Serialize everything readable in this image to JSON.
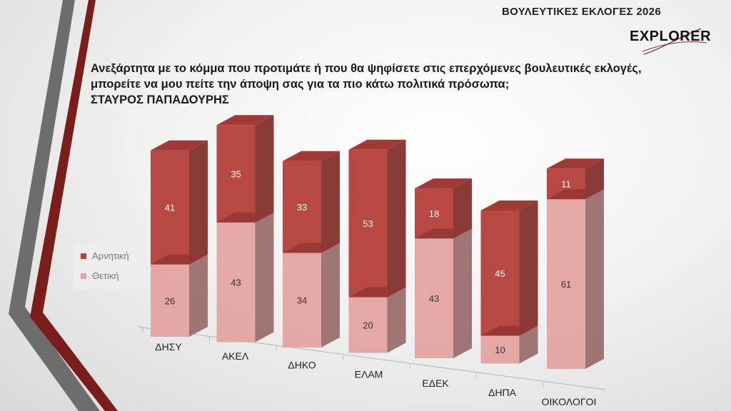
{
  "header": {
    "title": "ΒΟΥΛΕΥΤΙΚΕΣ ΕΚΛΟΓΕΣ 2026",
    "logo_text": "EXPLORER"
  },
  "question": {
    "line1": "Ανεξάρτητα με το κόμμα που προτιμάτε ή που θα ψηφίσετε στις επερχόμενες βουλευτικές εκλογές,",
    "line2": "μπορείτε να μου πείτε την άποψη σας για τα πιο κάτω πολιτικά πρόσωπα;",
    "subject": "ΣΤΑΥΡΟΣ ΠΑΠΑΔΟΥΡΗΣ"
  },
  "legend": [
    {
      "label": "Αρνητική",
      "color": "#b5423d"
    },
    {
      "label": "Θετική",
      "color": "#e3a3a1"
    }
  ],
  "chart_data": {
    "type": "bar",
    "stacked": true,
    "categories": [
      "ΔΗΣΥ",
      "ΑΚΕΛ",
      "ΔΗΚΟ",
      "ΕΛΑΜ",
      "ΕΔΕΚ",
      "ΔΗΠΑ",
      "ΟΙΚΟΛΟΓΟΙ"
    ],
    "series": [
      {
        "name": "Θετική",
        "values": [
          26,
          43,
          34,
          20,
          43,
          10,
          61
        ],
        "color": "#e3a3a1"
      },
      {
        "name": "Αρνητική",
        "values": [
          41,
          35,
          33,
          53,
          18,
          45,
          11
        ],
        "color": "#b5423d"
      }
    ],
    "data_labels": true,
    "legend_position": "left",
    "grid": false
  }
}
